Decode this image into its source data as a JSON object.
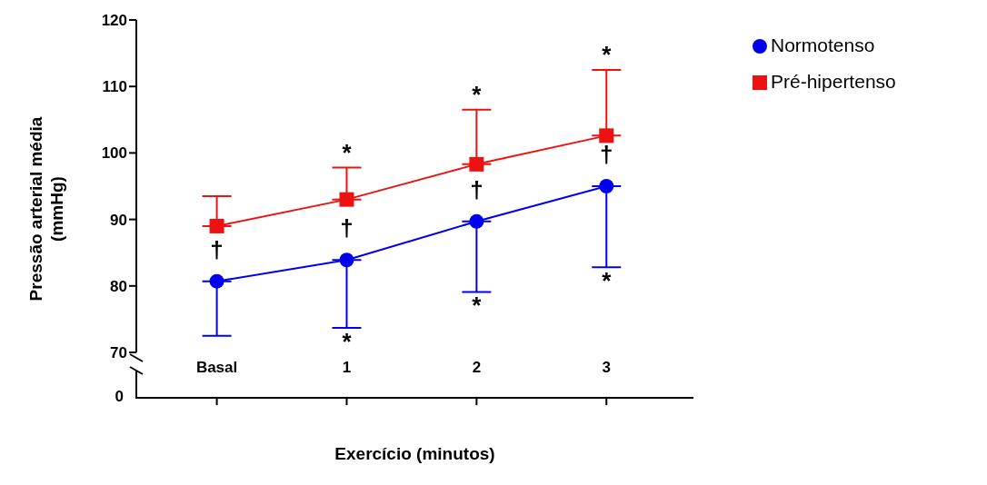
{
  "chart_data": {
    "type": "line",
    "ylabel": "Pressão arterial média (mmHg)",
    "xlabel": "Exercício (minutos)",
    "categories": [
      "Basal",
      "1",
      "2",
      "3"
    ],
    "series": [
      {
        "name": "Normotenso",
        "color": "#0000ee",
        "marker": "circle",
        "values": [
          80.7,
          83.9,
          89.7,
          95.0
        ],
        "errors": [
          [
            72.5,
            80.7
          ],
          [
            73.7,
            83.9
          ],
          [
            79.1,
            89.7
          ],
          [
            82.8,
            95.0
          ]
        ]
      },
      {
        "name": "Pré-hipertenso",
        "color": "#ee1111",
        "marker": "square",
        "values": [
          89.0,
          93.0,
          98.3,
          102.6
        ],
        "errors": [
          [
            89.0,
            93.5
          ],
          [
            93.0,
            97.8
          ],
          [
            98.3,
            106.5
          ],
          [
            102.6,
            112.5
          ]
        ]
      }
    ],
    "ylim": [
      70,
      120
    ],
    "yticks": [
      70,
      80,
      90,
      100,
      110,
      120
    ],
    "legend": "top right",
    "annotations": [
      "0",
      {
        "text": "†",
        "x": "Basal",
        "y": 80.7
      },
      {
        "text": "*",
        "x": "1",
        "y": 97.8
      },
      {
        "text": "†",
        "x": "1",
        "y": 83.9
      },
      {
        "text": "*",
        "x": "1",
        "y": 73.7
      },
      {
        "text": "*",
        "x": "2",
        "y": 106.5
      },
      {
        "text": "†",
        "x": "2",
        "y": 89.7
      },
      {
        "text": "*",
        "x": "2",
        "y": 79.1
      },
      {
        "text": "*",
        "x": "3",
        "y": 112.5
      },
      {
        "text": "†",
        "x": "3",
        "y": 95.0
      },
      {
        "text": "*",
        "x": "3",
        "y": 82.8
      }
    ]
  }
}
